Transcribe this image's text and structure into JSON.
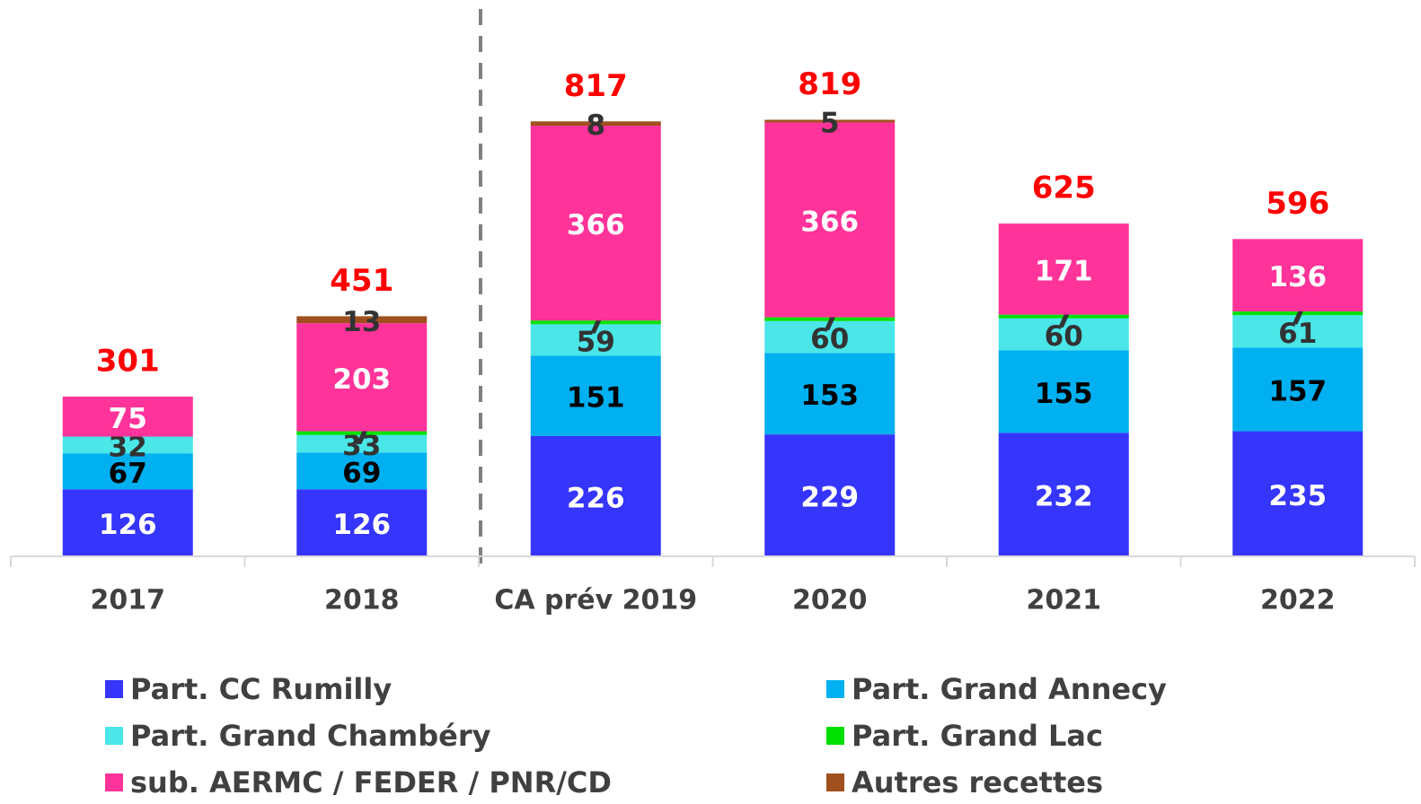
{
  "chart_data": {
    "type": "stacked_bar",
    "categories": [
      "2017",
      "2018",
      "CA prév 2019",
      "2020",
      "2021",
      "2022"
    ],
    "series": [
      {
        "name": "Part. CC Rumilly",
        "color": "#3535fb",
        "label_color": "#ffffff",
        "values": [
          126,
          126,
          226,
          229,
          232,
          235
        ]
      },
      {
        "name": "Part. Grand Annecy",
        "color": "#00b0f0",
        "label_color": "#000000",
        "values": [
          67,
          69,
          151,
          153,
          155,
          157
        ]
      },
      {
        "name": "Part. Grand Chambéry",
        "color": "#4ae6e8",
        "label_color": "#333333",
        "values": [
          32,
          33,
          59,
          60,
          60,
          61
        ]
      },
      {
        "name": "Part. Grand Lac",
        "color": "#00e000",
        "label_color": "#333333",
        "values": [
          null,
          7,
          7,
          7,
          7,
          7
        ]
      },
      {
        "name": "sub. AERMC / FEDER / PNR/CD",
        "color": "#ff3399",
        "label_color": "#ffffff",
        "values": [
          75,
          203,
          366,
          366,
          171,
          136
        ]
      },
      {
        "name": "Autres recettes",
        "color": "#a0501e",
        "label_color": "#333333",
        "values": [
          null,
          13,
          8,
          5,
          null,
          null
        ]
      }
    ],
    "totals": [
      301,
      451,
      817,
      819,
      625,
      596
    ],
    "total_color": "#ff0000",
    "ylim": [
      0,
      1045
    ]
  }
}
